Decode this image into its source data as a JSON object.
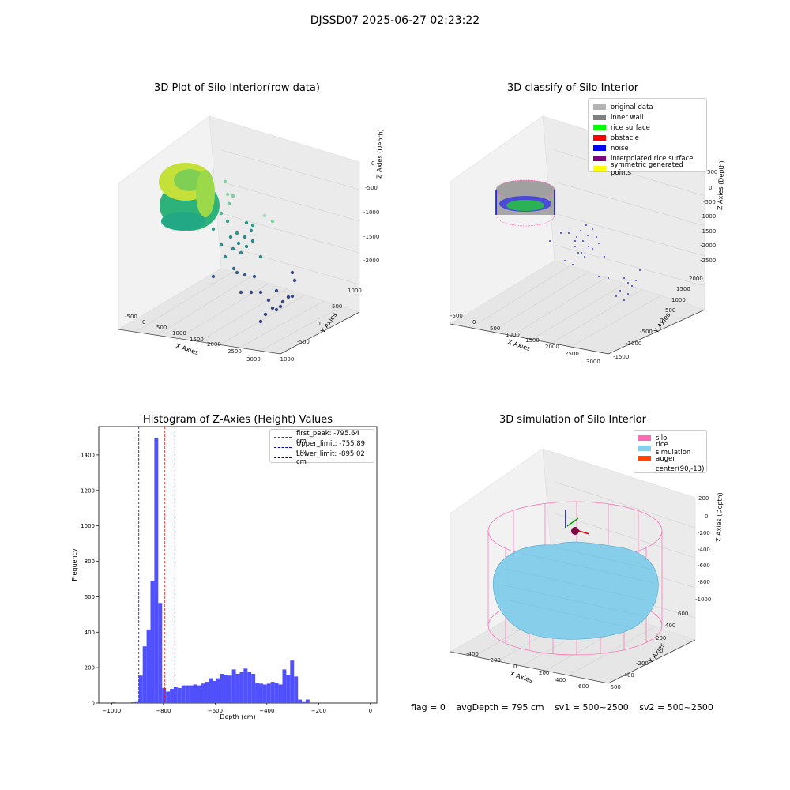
{
  "title": "DJSSD07 2025-06-27 02:23:22",
  "panels": {
    "raw": {
      "title": "3D Plot of Silo Interior(row data)",
      "xlabel": "X Axies",
      "ylabel": "Y Axies",
      "zlabel": "Z Axies (Depth)",
      "xticks": [
        "-500",
        "0",
        "500",
        "1000",
        "1500",
        "2000",
        "2500",
        "3000"
      ],
      "yticks": [
        "-1000",
        "-500",
        "0",
        "500",
        "1000"
      ],
      "zticks": [
        "0",
        "-500",
        "-1000",
        "-1500",
        "-2000"
      ]
    },
    "classify": {
      "title": "3D classify of Silo Interior",
      "xlabel": "X Axies",
      "ylabel": "Y Axies",
      "zlabel": "Z Axies (Depth)",
      "xticks": [
        "-500",
        "0",
        "500",
        "1000",
        "1500",
        "2000",
        "2500",
        "3000"
      ],
      "yticks": [
        "-1500",
        "-1000",
        "-500",
        "0",
        "500",
        "1000",
        "1500",
        "2000"
      ],
      "zticks": [
        "500",
        "0",
        "-500",
        "-1000",
        "-1500",
        "-2000",
        "-2500"
      ],
      "legend": [
        {
          "label": "original data",
          "color": "#b3b3b3"
        },
        {
          "label": "inner wall",
          "color": "#808080"
        },
        {
          "label": "rice surface",
          "color": "#00ff00"
        },
        {
          "label": "obstacle",
          "color": "#ff0000"
        },
        {
          "label": "noise",
          "color": "#0000ff"
        },
        {
          "label": "interpolated rice surface",
          "color": "#800080"
        },
        {
          "label": "symmetric generated points",
          "color": "#ffff00"
        }
      ]
    },
    "simulation": {
      "title": "3D simulation of Silo Interior",
      "xlabel": "X Axies",
      "ylabel": "Y Axies",
      "zlabel": "Z Axies (Depth)",
      "xticks": [
        "-400",
        "-200",
        "0",
        "200",
        "400",
        "600"
      ],
      "yticks": [
        "-600",
        "-400",
        "-200",
        "0",
        "200",
        "400",
        "600"
      ],
      "zticks": [
        "200",
        "0",
        "-200",
        "-400",
        "-600",
        "-800",
        "-1000"
      ],
      "legend": [
        {
          "label": "silo",
          "color": "#ff69b4"
        },
        {
          "label": "rice simulation",
          "color": "#87ceeb"
        },
        {
          "label": "auger",
          "color": "#ff4500"
        },
        {
          "label": "center(90,-13)",
          "color": "#ffffff"
        }
      ]
    }
  },
  "chart_data": {
    "type": "bar",
    "title": "Histogram of Z-Axies (Height) Values",
    "xlabel": "Depth (cm)",
    "ylabel": "Frequency",
    "xlim": [
      -1050,
      25
    ],
    "ylim": [
      0,
      1560
    ],
    "xticks": [
      -1000,
      -800,
      -600,
      -400,
      -200,
      0
    ],
    "yticks": [
      0,
      200,
      400,
      600,
      800,
      1000,
      1200,
      1400
    ],
    "bar_color": "#5050ff",
    "bin_width": 15,
    "bin_starts": [
      -1000,
      -985,
      -970,
      -955,
      -940,
      -925,
      -910,
      -895,
      -880,
      -865,
      -850,
      -835,
      -820,
      -805,
      -790,
      -775,
      -760,
      -745,
      -730,
      -715,
      -700,
      -685,
      -670,
      -655,
      -640,
      -625,
      -610,
      -595,
      -580,
      -565,
      -550,
      -535,
      -520,
      -505,
      -490,
      -475,
      -460,
      -445,
      -430,
      -415,
      -400,
      -385,
      -370,
      -355,
      -340,
      -325,
      -310,
      -295,
      -280,
      -265,
      -250,
      -235,
      -220,
      -205,
      -190,
      -175,
      -160,
      -145,
      -130,
      -115,
      -100,
      -85,
      -70,
      -55,
      -40,
      -25,
      -10
    ],
    "values": [
      5,
      0,
      0,
      0,
      0,
      5,
      10,
      155,
      320,
      415,
      690,
      1495,
      565,
      85,
      65,
      80,
      90,
      85,
      100,
      100,
      100,
      105,
      100,
      110,
      120,
      140,
      125,
      140,
      165,
      160,
      155,
      190,
      165,
      175,
      195,
      175,
      165,
      115,
      110,
      105,
      110,
      120,
      115,
      105,
      190,
      160,
      240,
      150,
      20,
      10,
      20,
      0,
      0,
      0,
      0,
      0,
      0,
      0,
      0,
      0,
      0,
      0,
      0,
      0,
      0,
      0,
      0
    ],
    "vlines": [
      {
        "label": "first_peak: -795.64 cm",
        "x": -795.64,
        "color": "#ff0000"
      },
      {
        "label": "Upper_limit: -755.89 cm",
        "x": -755.89,
        "color": "#0000cc"
      },
      {
        "label": "Lower_limit: -895.02 cm",
        "x": -895.02,
        "color": "#0000cc"
      }
    ]
  },
  "footer": {
    "flag": "flag = 0",
    "avg_depth": "avgDepth = 795 cm",
    "sv1": "sv1 = 500~2500",
    "sv2": "sv2 = 500~2500"
  }
}
